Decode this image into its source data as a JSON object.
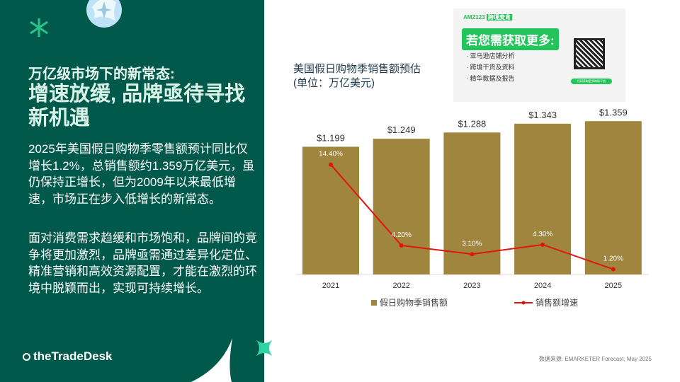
{
  "left": {
    "subtitle": "万亿级市场下的新常态:",
    "title": "增速放缓, 品牌亟待寻找新机遇",
    "para1": "2025年美国假日购物季零售额预计同比仅增长1.2%，总销售额约1.359万亿美元，虽仍保持正增长，但为2009年以来最低增速，市场正在步入低增长的新常态。",
    "para2": "面对消费需求趋缓和市场饱和，品牌间的竞争将更加激烈，品牌亟需通过差异化定位、精准营销和高效资源配置，才能在激烈的环境中脱颖而出，实现可持续增长。",
    "logo": "theTradeDesk"
  },
  "ad": {
    "brand": "AMZ123",
    "tag": "跨境麦肯",
    "headline": "若您需获取更多:",
    "items": [
      "· 亚马逊店铺分析",
      "· 跨境干货及资料",
      "· 精华数据及报告"
    ],
    "button": "扫码获取更多跨境干货"
  },
  "source": "数据来源: EMARKETER Forecast, May 2025",
  "colors": {
    "panel": "#01594b",
    "bar": "#a0853f",
    "line": "#e0160e"
  },
  "chart_data": {
    "type": "bar+line",
    "title": "美国假日购物季销售额预估\n(单位：万亿美元)",
    "categories": [
      "2021",
      "2022",
      "2023",
      "2024",
      "2025"
    ],
    "series": [
      {
        "name": "假日购物季销售额",
        "type": "bar",
        "values": [
          1.199,
          1.249,
          1.288,
          1.343,
          1.359
        ],
        "labels": [
          "$1.199",
          "$1.249",
          "$1.288",
          "$1.343",
          "$1.359"
        ]
      },
      {
        "name": "销售额增速",
        "type": "line",
        "values": [
          14.4,
          4.2,
          3.1,
          4.3,
          1.2
        ],
        "labels": [
          "14.40%",
          "4.20%",
          "3.10%",
          "4.30%",
          "1.20%"
        ]
      }
    ],
    "ylim": [
      0.4,
      1.4
    ],
    "y2lim": [
      0,
      20
    ],
    "grid": false,
    "legend": "bottom"
  }
}
